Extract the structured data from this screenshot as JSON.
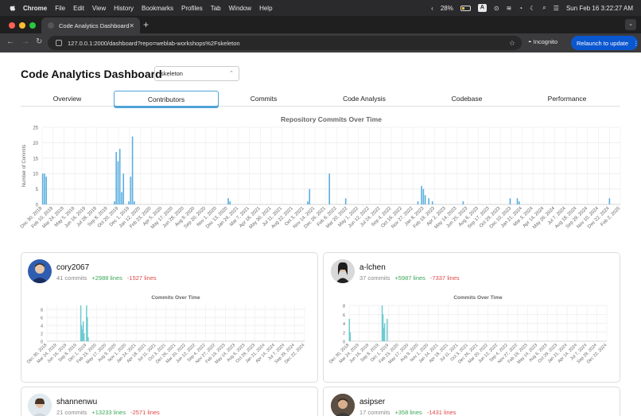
{
  "menubar": {
    "app": "Chrome",
    "items": [
      "File",
      "Edit",
      "View",
      "History",
      "Bookmarks",
      "Profiles",
      "Tab",
      "Window",
      "Help"
    ],
    "battery": "28%",
    "clock": "Sun Feb 16  3:22:27 AM"
  },
  "browser": {
    "tab_title": "Code Analytics Dashboard",
    "url": "127.0.0.1:2000/dashboard?repo=weblab-workshops%2Fskeleton",
    "incognito": "Incognito",
    "relaunch": "Relaunch to update"
  },
  "page": {
    "title": "Code Analytics Dashboard",
    "repo": "skeleton",
    "tabs": [
      "Overview",
      "Contributors",
      "Commits",
      "Code Analysis",
      "Codebase",
      "Performance"
    ],
    "active_tab": "Contributors"
  },
  "chart_data": [
    {
      "type": "bar",
      "title": "Repository Commits Over Time",
      "ylabel": "Number of Commits",
      "ylim": [
        0,
        25
      ],
      "yticks": [
        0,
        5,
        10,
        15,
        20,
        25
      ],
      "xlim": [
        "2018-12-30",
        "2025-02-16"
      ],
      "xticks": [
        "Dec 30, 2018",
        "Feb 10, 2019",
        "Mar 24, 2019",
        "May 5, 2019",
        "Jun 16, 2019",
        "Jul 28, 2019",
        "Sep 8, 2019",
        "Oct 20, 2019",
        "Dec 1, 2019",
        "Jan 12, 2020",
        "Feb 23, 2020",
        "Apr 5, 2020",
        "May 17, 2020",
        "Jun 28, 2020",
        "Aug 9, 2020",
        "Sep 20, 2020",
        "Nov 1, 2020",
        "Dec 13, 2020",
        "Jan 24, 2021",
        "Mar 7, 2021",
        "Apr 18, 2021",
        "May 30, 2021",
        "Jul 11, 2021",
        "Aug 22, 2021",
        "Oct 3, 2021",
        "Nov 14, 2021",
        "Dec 26, 2021",
        "Feb 6, 2022",
        "Mar 20, 2022",
        "May 1, 2022",
        "Jun 12, 2022",
        "Jul 24, 2022",
        "Sep 4, 2022",
        "Oct 16, 2022",
        "Nov 27, 2022",
        "Jan 8, 2023",
        "Feb 19, 2023",
        "Apr 2, 2023",
        "May 14, 2023",
        "Jun 25, 2023",
        "Aug 6, 2023",
        "Sep 17, 2023",
        "Oct 29, 2023",
        "Dec 10, 2023",
        "Jan 21, 2024",
        "Mar 3, 2024",
        "Apr 14, 2024",
        "May 26, 2024",
        "Jul 7, 2024",
        "Aug 18, 2024",
        "Sep 29, 2024",
        "Nov 10, 2024",
        "Dec 22, 2024",
        "Feb 2, 2025"
      ],
      "x": [
        "2019-01-01",
        "2019-01-08",
        "2019-01-15",
        "2019-10-06",
        "2019-10-13",
        "2019-10-20",
        "2019-10-27",
        "2019-11-03",
        "2019-11-10",
        "2019-12-01",
        "2019-12-08",
        "2019-12-15",
        "2019-12-22",
        "2020-12-20",
        "2020-12-27",
        "2021-10-24",
        "2021-10-31",
        "2022-01-16",
        "2022-03-20",
        "2022-12-25",
        "2023-01-08",
        "2023-01-15",
        "2023-01-22",
        "2023-02-05",
        "2023-02-19",
        "2023-06-18",
        "2023-12-17",
        "2024-01-14",
        "2024-01-21",
        "2025-01-05"
      ],
      "y": [
        10,
        10,
        9,
        1,
        17,
        14,
        18,
        4,
        10,
        1,
        9,
        22,
        1,
        2,
        1,
        1,
        5,
        10,
        2,
        1,
        6,
        5,
        3,
        2,
        1,
        1,
        2,
        2,
        1,
        2
      ],
      "color": "#5aaee0"
    },
    {
      "type": "bar",
      "title": "Commits Over Time",
      "ylim": [
        0,
        9
      ],
      "yticks": [
        0,
        2,
        4,
        6,
        8
      ],
      "xlim": [
        "2018-12-30",
        "2024-12-22"
      ],
      "xticks": [
        "Dec 30, 2018",
        "Mar 24, 2019",
        "Jun 16, 2019",
        "Sep 8, 2019",
        "Dec 1, 2019",
        "Feb 23, 2020",
        "May 17, 2020",
        "Aug 9, 2020",
        "Nov 1, 2020",
        "Jan 24, 2021",
        "Apr 18, 2021",
        "Jul 11, 2021",
        "Oct 3, 2021",
        "Dec 26, 2021",
        "Mar 20, 2022",
        "Jun 12, 2022",
        "Sep 4, 2022",
        "Nov 27, 2022",
        "Feb 19, 2023",
        "May 14, 2023",
        "Aug 6, 2023",
        "Oct 29, 2023",
        "Jan 21, 2024",
        "Apr 14, 2024",
        "Jul 7, 2024",
        "Sep 29, 2024",
        "Dec 22, 2024"
      ],
      "x": [
        "2019-10-13",
        "2019-10-20",
        "2019-10-27",
        "2019-11-03",
        "2019-11-10",
        "2019-12-01",
        "2019-12-08",
        "2019-12-15"
      ],
      "y": [
        9,
        4,
        3,
        5,
        2,
        9,
        6,
        1
      ],
      "color": "#6fcad0"
    },
    {
      "type": "bar",
      "title": "Commits Over Time",
      "ylim": [
        0,
        8
      ],
      "yticks": [
        0,
        2,
        4,
        6,
        8
      ],
      "xlim": [
        "2018-12-30",
        "2024-12-22"
      ],
      "xticks": [
        "Dec 30, 2018",
        "Mar 24, 2019",
        "Jun 16, 2019",
        "Sep 8, 2019",
        "Dec 1, 2019",
        "Feb 23, 2020",
        "May 17, 2020",
        "Aug 9, 2020",
        "Nov 1, 2020",
        "Jan 24, 2021",
        "Apr 18, 2021",
        "Jul 11, 2021",
        "Oct 3, 2021",
        "Dec 26, 2021",
        "Mar 20, 2022",
        "Jun 12, 2022",
        "Sep 4, 2022",
        "Nov 27, 2022",
        "Feb 19, 2023",
        "May 14, 2023",
        "Aug 6, 2023",
        "Oct 29, 2023",
        "Jan 21, 2024",
        "Apr 14, 2024",
        "Jul 7, 2024",
        "Sep 29, 2024",
        "Dec 22, 2024"
      ],
      "x": [
        "2019-01-01",
        "2019-01-08",
        "2019-10-06",
        "2019-10-13",
        "2019-10-20",
        "2019-10-27",
        "2019-11-17"
      ],
      "y": [
        5,
        2,
        8,
        6,
        3,
        4,
        5
      ],
      "color": "#6fcad0"
    }
  ],
  "contributors": [
    {
      "name": "cory2067",
      "commits": "41 commits",
      "added": "+2988 lines",
      "deleted": "-1527 lines"
    },
    {
      "name": "a-lchen",
      "commits": "37 commits",
      "added": "+5987 lines",
      "deleted": "-7337 lines"
    },
    {
      "name": "shannenwu",
      "commits": "21 commits",
      "added": "+13233 lines",
      "deleted": "-2571 lines"
    },
    {
      "name": "asipser",
      "commits": "17 commits",
      "added": "+358 lines",
      "deleted": "-1431 lines"
    }
  ]
}
